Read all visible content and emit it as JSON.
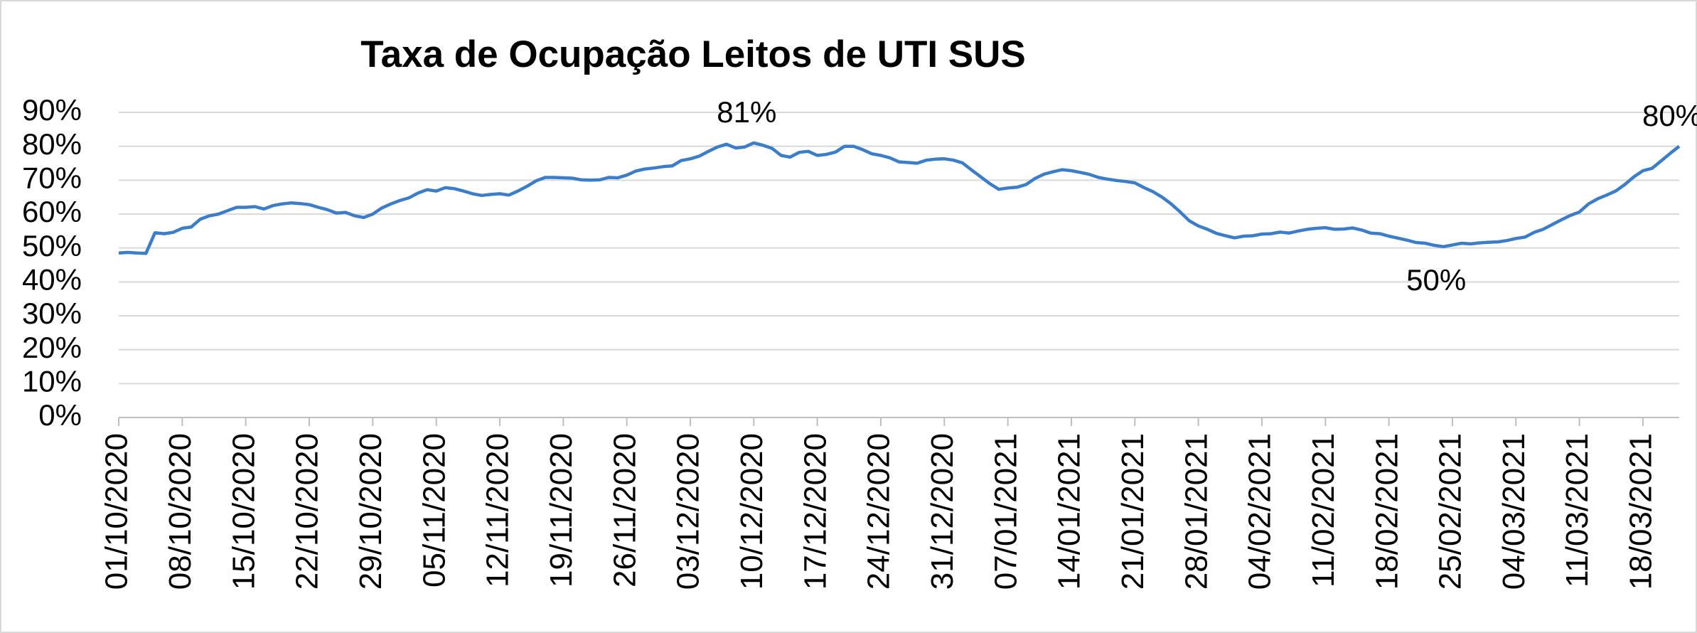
{
  "chart_data": {
    "type": "line",
    "title": "Taxa de Ocupação Leitos de UTI SUS",
    "categories": [
      "01/10/2020",
      null,
      null,
      null,
      null,
      null,
      null,
      "08/10/2020",
      null,
      null,
      null,
      null,
      null,
      null,
      "15/10/2020",
      null,
      null,
      null,
      null,
      null,
      null,
      "22/10/2020",
      null,
      null,
      null,
      null,
      null,
      null,
      "29/10/2020",
      null,
      null,
      null,
      null,
      null,
      null,
      "05/11/2020",
      null,
      null,
      null,
      null,
      null,
      null,
      "12/11/2020",
      null,
      null,
      null,
      null,
      null,
      null,
      "19/11/2020",
      null,
      null,
      null,
      null,
      null,
      null,
      "26/11/2020",
      null,
      null,
      null,
      null,
      null,
      null,
      "03/12/2020",
      null,
      null,
      null,
      null,
      null,
      null,
      "10/12/2020",
      null,
      null,
      null,
      null,
      null,
      null,
      "17/12/2020",
      null,
      null,
      null,
      null,
      null,
      null,
      "24/12/2020",
      null,
      null,
      null,
      null,
      null,
      null,
      "31/12/2020",
      null,
      null,
      null,
      null,
      null,
      null,
      "07/01/2021",
      null,
      null,
      null,
      null,
      null,
      null,
      "14/01/2021",
      null,
      null,
      null,
      null,
      null,
      null,
      "21/01/2021",
      null,
      null,
      null,
      null,
      null,
      null,
      "28/01/2021",
      null,
      null,
      null,
      null,
      null,
      null,
      "04/02/2021",
      null,
      null,
      null,
      null,
      null,
      null,
      "11/02/2021",
      null,
      null,
      null,
      null,
      null,
      null,
      "18/02/2021",
      null,
      null,
      null,
      null,
      null,
      null,
      "25/02/2021",
      null,
      null,
      null,
      null,
      null,
      null,
      "04/03/2021",
      null,
      null,
      null,
      null,
      null,
      null,
      "11/03/2021",
      null,
      null,
      null,
      null,
      null,
      null,
      "18/03/2021",
      null,
      null,
      null,
      null
    ],
    "values": [
      48.5,
      48.7,
      48.5,
      48.4,
      54.5,
      54.2,
      54.6,
      55.8,
      56.2,
      58.5,
      59.5,
      60,
      61,
      62,
      62,
      62.2,
      61.5,
      62.5,
      63,
      63.3,
      63.1,
      62.8,
      62,
      61.3,
      60.3,
      60.5,
      59.5,
      59,
      60,
      61.8,
      63,
      64,
      64.8,
      66.2,
      67.2,
      66.8,
      67.8,
      67.5,
      66.8,
      66,
      65.5,
      65.8,
      66,
      65.6,
      66.8,
      68.2,
      69.8,
      70.8,
      70.8,
      70.7,
      70.6,
      70.1,
      70,
      70.1,
      70.8,
      70.7,
      71.5,
      72.7,
      73.3,
      73.6,
      74,
      74.2,
      75.8,
      76.3,
      77.1,
      78.5,
      79.8,
      80.6,
      79.5,
      79.8,
      81,
      80.3,
      79.4,
      77.3,
      76.8,
      78.2,
      78.5,
      77.3,
      77.6,
      78.3,
      80,
      80,
      79,
      77.8,
      77.3,
      76.6,
      75.4,
      75.2,
      75,
      75.9,
      76.2,
      76.3,
      75.9,
      75.1,
      73,
      71,
      69,
      67.3,
      67.7,
      67.9,
      68.7,
      70.5,
      71.8,
      72.5,
      73.1,
      72.8,
      72.3,
      71.7,
      70.8,
      70.3,
      69.9,
      69.6,
      69.2,
      67.8,
      66.6,
      65,
      63,
      60.6,
      58,
      56.5,
      55.5,
      54.3,
      53.6,
      53,
      53.5,
      53.6,
      54.1,
      54.2,
      54.7,
      54.4,
      55,
      55.5,
      55.8,
      56,
      55.5,
      55.6,
      55.9,
      55.3,
      54.4,
      54.2,
      53.5,
      52.9,
      52.3,
      51.6,
      51.4,
      50.8,
      50.4,
      50.9,
      51.4,
      51.2,
      51.5,
      51.7,
      51.8,
      52.2,
      52.8,
      53.2,
      54.6,
      55.5,
      56.9,
      58.3,
      59.6,
      60.6,
      63,
      64.5,
      65.6,
      66.8,
      68.7,
      71,
      72.8,
      73.5,
      75.7,
      77.9,
      80
    ],
    "value_labels": [
      null,
      null,
      null,
      null,
      null,
      null,
      null,
      null,
      null,
      null,
      null,
      null,
      null,
      null,
      null,
      null,
      null,
      null,
      null,
      null,
      null,
      null,
      null,
      null,
      null,
      null,
      null,
      null,
      null,
      null,
      null,
      null,
      null,
      null,
      null,
      null,
      null,
      null,
      null,
      null,
      null,
      null,
      null,
      null,
      null,
      null,
      null,
      null,
      null,
      null,
      null,
      null,
      null,
      null,
      null,
      null,
      null,
      null,
      null,
      null,
      null,
      null,
      null,
      null,
      null,
      null,
      null,
      null,
      null,
      null,
      "81%",
      null,
      null,
      null,
      null,
      null,
      null,
      null,
      null,
      null,
      null,
      null,
      null,
      null,
      null,
      null,
      null,
      null,
      null,
      null,
      null,
      null,
      null,
      null,
      null,
      null,
      null,
      null,
      null,
      null,
      null,
      null,
      null,
      null,
      null,
      null,
      null,
      null,
      null,
      null,
      null,
      null,
      null,
      null,
      null,
      null,
      null,
      null,
      null,
      null,
      null,
      null,
      null,
      null,
      null,
      null,
      null,
      null,
      null,
      null,
      null,
      null,
      null,
      null,
      null,
      null,
      null,
      null,
      null,
      null,
      null,
      null,
      null,
      null,
      null,
      null,
      "50%",
      null,
      null,
      null,
      null,
      null,
      null,
      null,
      null,
      null,
      null,
      null,
      null,
      null,
      null,
      null,
      null,
      null,
      null,
      null,
      null,
      null,
      null,
      null,
      null,
      null,
      "80%"
    ],
    "color": "#3b7dc8",
    "ylim": [
      0,
      90
    ],
    "yticks": [
      {
        "value": 0,
        "label": "0%"
      },
      {
        "value": 10,
        "label": "10%"
      },
      {
        "value": 20,
        "label": "20%"
      },
      {
        "value": 30,
        "label": "30%"
      },
      {
        "value": 40,
        "label": "40%"
      },
      {
        "value": 50,
        "label": "50%"
      },
      {
        "value": 60,
        "label": "60%"
      },
      {
        "value": 70,
        "label": "70%"
      },
      {
        "value": 80,
        "label": "80%"
      },
      {
        "value": 90,
        "label": "90%"
      }
    ],
    "grid": true
  }
}
